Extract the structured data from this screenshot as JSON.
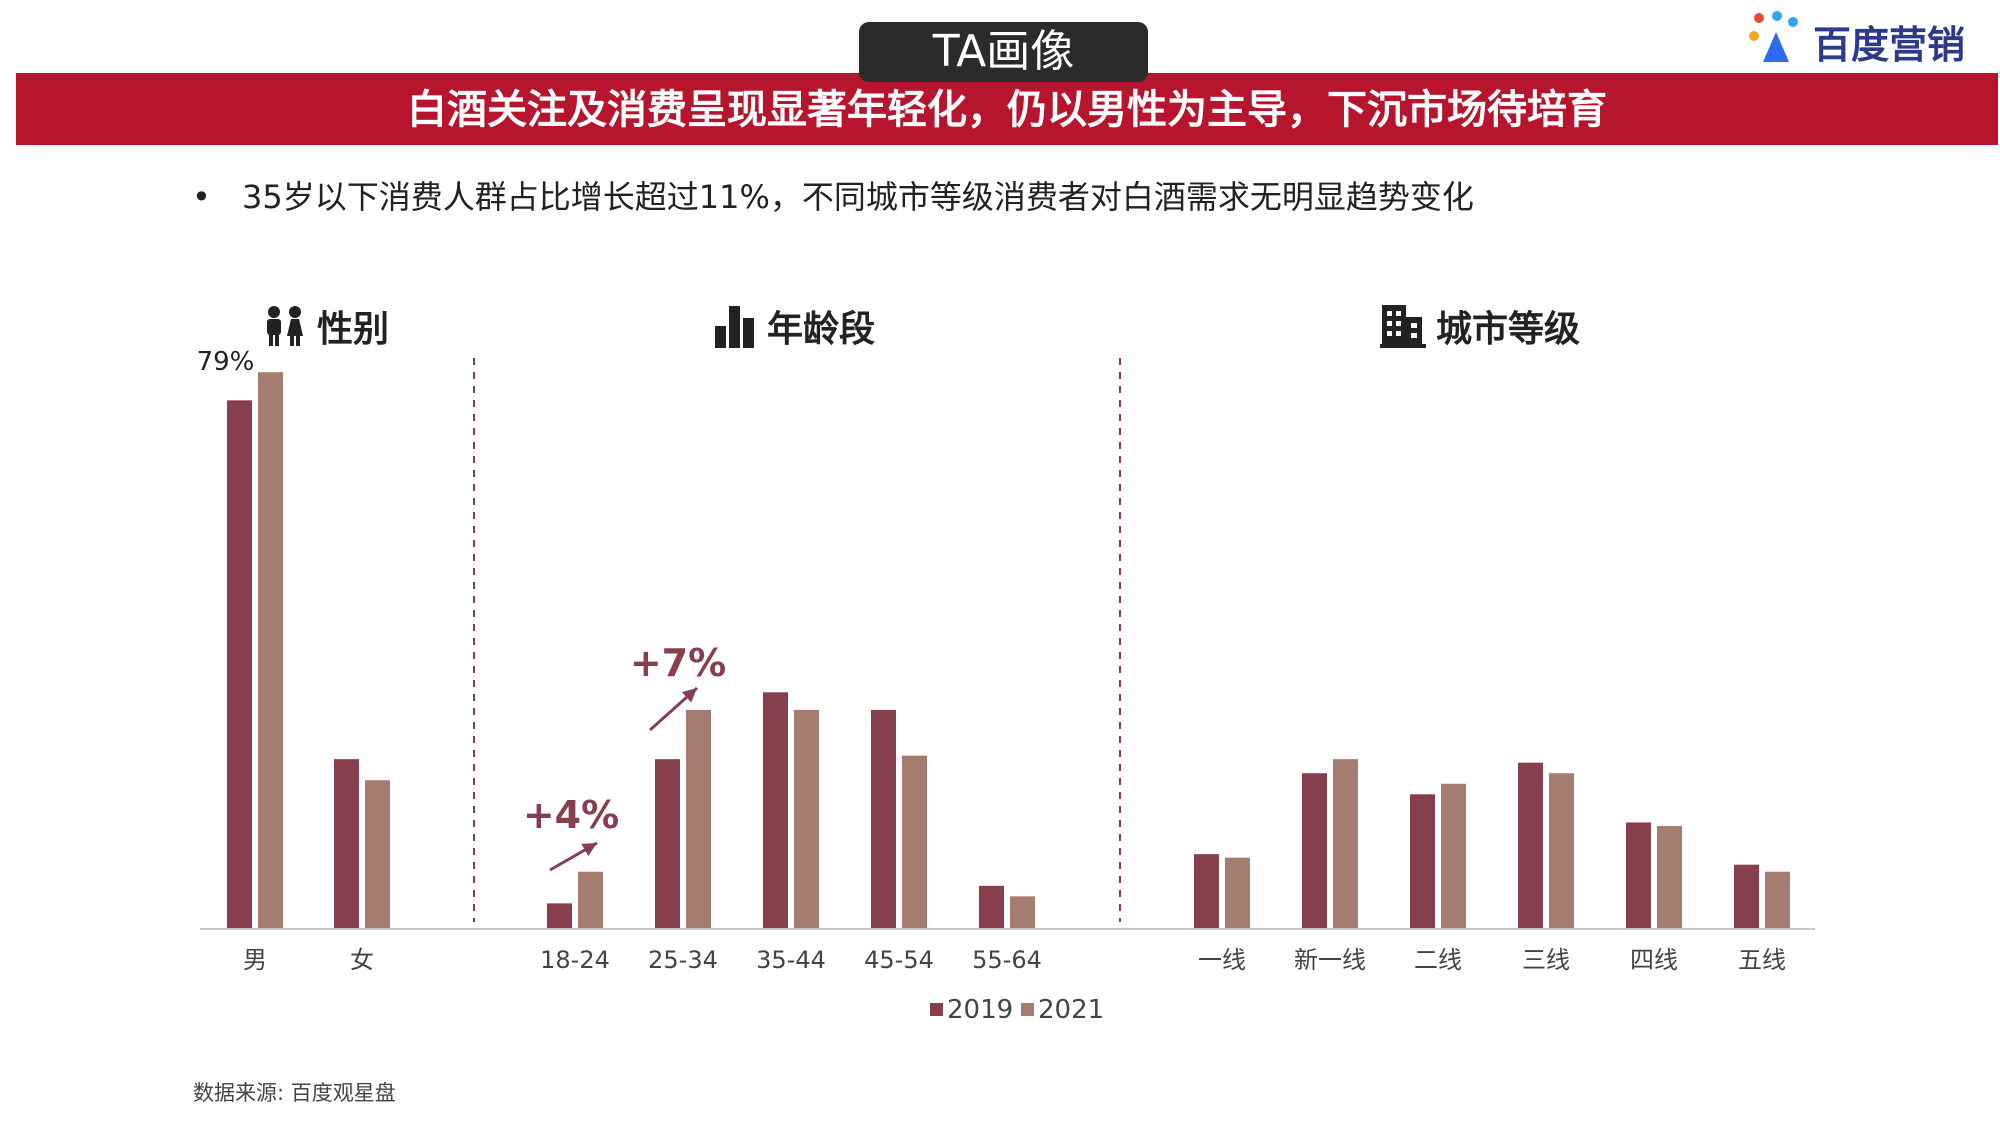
{
  "header": {
    "badge": "TA画像",
    "banner": "白酒关注及消费呈现显著年轻化，仍以男性为主导，下沉市场待培育",
    "logo_text": "百度营销"
  },
  "bullet": {
    "marker": "•",
    "text": "35岁以下消费人群占比增长超过11%，不同城市等级消费者对白酒需求无明显趋势变化"
  },
  "sections": {
    "gender": "性别",
    "age": "年龄段",
    "city": "城市等级"
  },
  "icons": [
    "people-icon",
    "bar-chart-icon",
    "building-icon"
  ],
  "source": "数据来源: 百度观星盘",
  "colors": {
    "accent": "#b7142e",
    "series2019": "#873f4e",
    "series2021": "#a57d70",
    "logo_blue": "#2d3a8c"
  },
  "chart_data": {
    "type": "bar",
    "ylim": [
      0,
      85
    ],
    "legend": {
      "position": "bottom-center"
    },
    "series": [
      {
        "name": "2019"
      },
      {
        "name": "2021"
      }
    ],
    "groups": [
      {
        "name": "gender",
        "categories": [
          "男",
          "女"
        ],
        "values_2019": [
          75,
          24
        ],
        "values_2021": [
          79,
          21
        ],
        "data_labels": [
          {
            "category": "男",
            "series": "2021",
            "text": "79%"
          }
        ]
      },
      {
        "name": "age",
        "categories": [
          "18-24",
          "25-34",
          "35-44",
          "45-54",
          "55-64"
        ],
        "values_2019": [
          3.5,
          24,
          33.5,
          31,
          6
        ],
        "values_2021": [
          8,
          31,
          31,
          24.5,
          4.5
        ]
      },
      {
        "name": "city",
        "categories": [
          "一线",
          "新一线",
          "二线",
          "三线",
          "四线",
          "五线"
        ],
        "values_2019": [
          10.5,
          22,
          19,
          23.5,
          15,
          9
        ],
        "values_2021": [
          10,
          24,
          20.5,
          22,
          14.5,
          8
        ]
      }
    ],
    "annotations": [
      {
        "text": "+4%",
        "category": "18-24"
      },
      {
        "text": "+7%",
        "category": "25-34"
      }
    ]
  }
}
